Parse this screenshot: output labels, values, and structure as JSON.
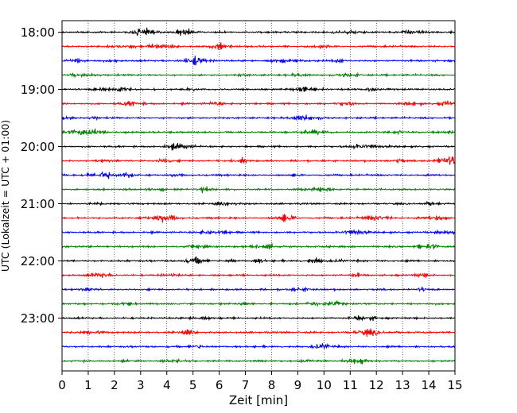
{
  "chart_data": {
    "type": "line",
    "title": "",
    "xlabel": "Zeit  [min]",
    "ylabel": "UTC (Lokalzeit = UTC + 01:00)",
    "xlim": [
      0,
      15
    ],
    "x_ticks": [
      "0",
      "1",
      "2",
      "3",
      "4",
      "5",
      "6",
      "7",
      "8",
      "9",
      "10",
      "11",
      "12",
      "13",
      "14",
      "15"
    ],
    "y_ticks": [
      {
        "label": "18:00",
        "row": 0
      },
      {
        "label": "19:00",
        "row": 4
      },
      {
        "label": "20:00",
        "row": 8
      },
      {
        "label": "21:00",
        "row": 12
      },
      {
        "label": "22:00",
        "row": 16
      },
      {
        "label": "23:00",
        "row": 20
      }
    ],
    "grid": "vertical dotted",
    "row_minutes": 15,
    "row_count": 24,
    "colors": [
      "#000000",
      "#ff0000",
      "#0000ff",
      "#008000"
    ]
  }
}
